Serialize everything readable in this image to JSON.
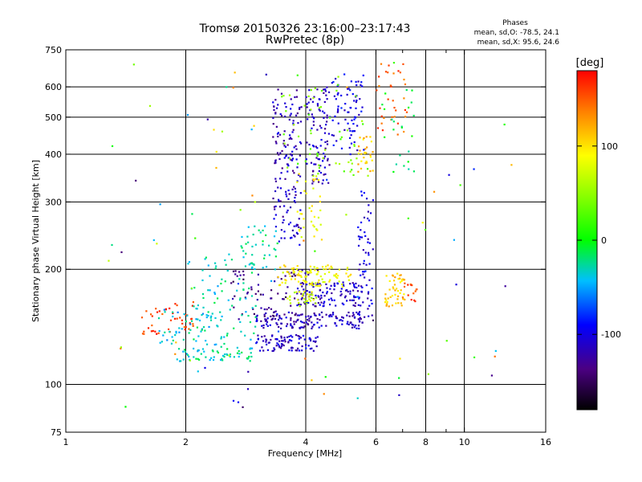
{
  "chart_data": {
    "type": "scatter",
    "title_line1": "Tromsø 20150326 23:16:00–23:17:43",
    "title_line2": "RwPretec (8p)",
    "xlabel": "Frequency [MHz]",
    "ylabel": "Stationary phase Virtual Height [km]",
    "x_scale": "log",
    "y_scale": "log",
    "xlim": [
      1,
      16
    ],
    "ylim": [
      75,
      750
    ],
    "x_ticks": [
      1,
      2,
      4,
      6,
      8,
      10,
      16
    ],
    "x_minor_ticks": [
      7,
      9
    ],
    "y_ticks": [
      75,
      100,
      200,
      300,
      400,
      500,
      600,
      750
    ],
    "x_grid": [
      2,
      4,
      6,
      8,
      10
    ],
    "y_grid": [
      100,
      200,
      300,
      400,
      500,
      600
    ],
    "grid": true,
    "legend": {
      "title": "Phases",
      "o_text": "mean, sd,O: -78.5, 24.1",
      "x_text": "mean, sd,X:  95.6, 24.6"
    },
    "colorbar": {
      "label": "[deg]",
      "min": -180,
      "max": 180,
      "ticks": [
        100,
        0,
        -100
      ]
    },
    "clusters": [
      {
        "name": "E-trace cyan",
        "x0": 1.9,
        "x1": 3.0,
        "y0": 115,
        "y1": 125,
        "phase": -30,
        "n": 60
      },
      {
        "name": "E-trace blue",
        "x0": 3.0,
        "x1": 4.3,
        "y0": 122,
        "y1": 135,
        "phase": -110,
        "n": 90
      },
      {
        "name": "Es-trace blue",
        "x0": 3.0,
        "x1": 5.6,
        "y0": 140,
        "y1": 155,
        "phase": -115,
        "n": 150
      },
      {
        "name": "F1 purple",
        "x0": 2.6,
        "x1": 4.3,
        "y0": 150,
        "y1": 200,
        "phase": -135,
        "n": 80
      },
      {
        "name": "F1 blue",
        "x0": 3.8,
        "x1": 5.6,
        "y0": 160,
        "y1": 185,
        "phase": -110,
        "n": 110
      },
      {
        "name": "F1 yellow",
        "x0": 3.4,
        "x1": 5.2,
        "y0": 180,
        "y1": 205,
        "phase": 90,
        "n": 100
      },
      {
        "name": "F1 green-yellow",
        "x0": 3.6,
        "x1": 4.3,
        "y0": 160,
        "y1": 175,
        "phase": 70,
        "n": 30
      },
      {
        "name": "left orange",
        "x0": 1.55,
        "x1": 2.1,
        "y0": 135,
        "y1": 165,
        "phase": 160,
        "n": 45
      },
      {
        "name": "left cyan",
        "x0": 1.7,
        "x1": 2.5,
        "y0": 125,
        "y1": 160,
        "phase": -40,
        "n": 50
      },
      {
        "name": "low cyan blob",
        "x0": 2.0,
        "x1": 3.0,
        "y0": 130,
        "y1": 220,
        "phase": -30,
        "n": 90
      },
      {
        "name": "mid cyan",
        "x0": 2.7,
        "x1": 3.4,
        "y0": 200,
        "y1": 260,
        "phase": -25,
        "n": 40
      },
      {
        "name": "F2 blue column",
        "x0": 3.3,
        "x1": 3.9,
        "y0": 230,
        "y1": 600,
        "phase": -115,
        "n": 160
      },
      {
        "name": "F2 blue col 2",
        "x0": 4.0,
        "x1": 4.6,
        "y0": 330,
        "y1": 600,
        "phase": -115,
        "n": 90
      },
      {
        "name": "F2 yellow",
        "x0": 3.8,
        "x1": 4.4,
        "y0": 230,
        "y1": 360,
        "phase": 90,
        "n": 35
      },
      {
        "name": "F2 yellow right",
        "x0": 5.4,
        "x1": 5.9,
        "y0": 360,
        "y1": 450,
        "phase": 110,
        "n": 30
      },
      {
        "name": "F2 blue right",
        "x0": 4.5,
        "x1": 5.6,
        "y0": 400,
        "y1": 650,
        "phase": -100,
        "n": 80
      },
      {
        "name": "right column blue",
        "x0": 5.4,
        "x1": 5.9,
        "y0": 150,
        "y1": 320,
        "phase": -105,
        "n": 60
      },
      {
        "name": "upper mixed",
        "x0": 3.3,
        "x1": 6.0,
        "y0": 350,
        "y1": 650,
        "phase": 40,
        "n": 60
      },
      {
        "name": "right yellow",
        "x0": 6.3,
        "x1": 7.1,
        "y0": 160,
        "y1": 195,
        "phase": 110,
        "n": 50
      },
      {
        "name": "right orange",
        "x0": 7.0,
        "x1": 7.6,
        "y0": 165,
        "y1": 185,
        "phase": 150,
        "n": 15
      },
      {
        "name": "upper right orange",
        "x0": 6.0,
        "x1": 7.2,
        "y0": 450,
        "y1": 700,
        "phase": 150,
        "n": 35
      },
      {
        "name": "upper right cyan",
        "x0": 6.2,
        "x1": 7.5,
        "y0": 350,
        "y1": 600,
        "phase": -10,
        "n": 20
      },
      {
        "name": "scatter sparse",
        "x0": 1.1,
        "x1": 14.0,
        "y0": 80,
        "y1": 700,
        "phase": 0,
        "n": 90
      }
    ]
  }
}
